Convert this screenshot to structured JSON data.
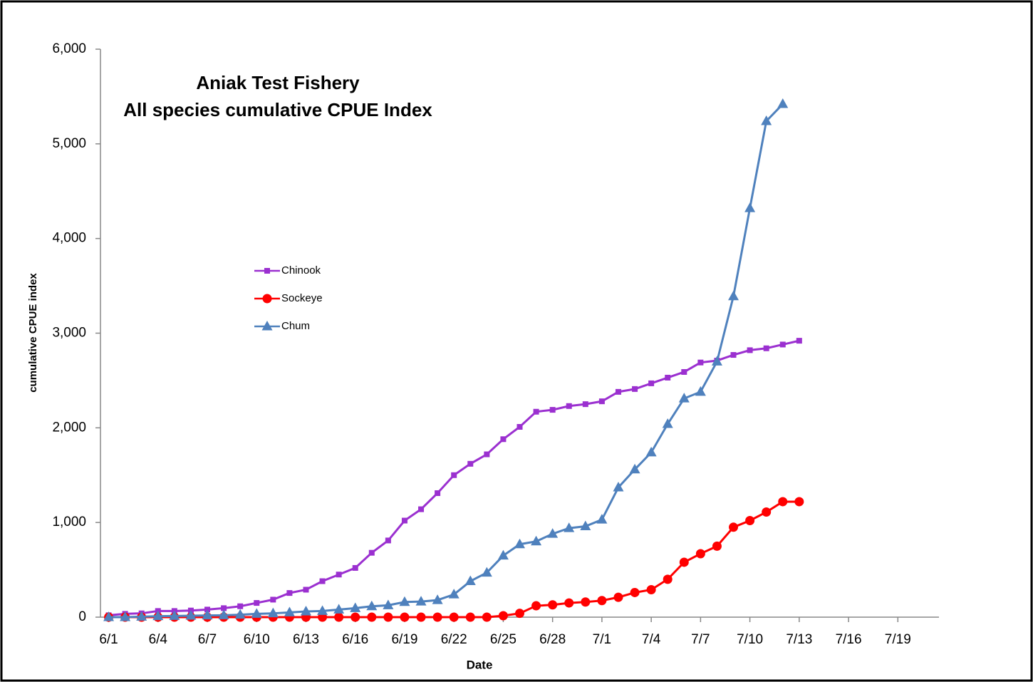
{
  "chart_data": {
    "type": "line",
    "title": [
      "Aniak Test Fishery",
      "All species cumulative CPUE Index"
    ],
    "x_label": "Date",
    "y_label": "cumulative CPUE index",
    "categories": [
      "6/1",
      null,
      null,
      "6/4",
      null,
      null,
      "6/7",
      null,
      null,
      "6/10",
      null,
      null,
      "6/13",
      null,
      null,
      "6/16",
      null,
      null,
      "6/19",
      null,
      null,
      "6/22",
      null,
      null,
      "6/25",
      null,
      null,
      "6/28",
      null,
      null,
      "7/1",
      null,
      null,
      "7/4",
      null,
      null,
      "7/7",
      null,
      null,
      "7/10",
      null,
      null,
      "7/13",
      null,
      null,
      "7/16",
      null,
      null,
      "7/19",
      null,
      null
    ],
    "series": [
      {
        "name": "Chinook",
        "color": "#9b30d0",
        "marker": "square",
        "values": [
          20,
          35,
          40,
          65,
          65,
          70,
          80,
          95,
          115,
          150,
          185,
          255,
          290,
          380,
          450,
          520,
          680,
          810,
          1020,
          1140,
          1310,
          1500,
          1620,
          1720,
          1880,
          2010,
          2170,
          2190,
          2230,
          2250,
          2280,
          2380,
          2410,
          2470,
          2530,
          2590,
          2690,
          2710,
          2770,
          2820,
          2840,
          2880,
          2920,
          null,
          null,
          null,
          null,
          null,
          null,
          null,
          null
        ]
      },
      {
        "name": "Sockeye",
        "color": "#ff0000",
        "marker": "circle",
        "values": [
          0,
          0,
          0,
          0,
          0,
          0,
          0,
          0,
          0,
          0,
          0,
          0,
          0,
          0,
          0,
          0,
          0,
          0,
          0,
          0,
          0,
          0,
          0,
          0,
          15,
          40,
          120,
          130,
          150,
          160,
          175,
          210,
          260,
          290,
          400,
          580,
          670,
          750,
          950,
          1020,
          1110,
          1220,
          1220,
          null,
          null,
          null,
          null,
          null,
          null,
          null,
          null
        ]
      },
      {
        "name": "Chum",
        "color": "#4f81bd",
        "marker": "triangle",
        "values": [
          0,
          0,
          5,
          10,
          12,
          15,
          18,
          20,
          25,
          35,
          40,
          50,
          60,
          65,
          80,
          95,
          115,
          125,
          160,
          165,
          180,
          240,
          380,
          470,
          650,
          770,
          800,
          880,
          940,
          960,
          1030,
          1370,
          1560,
          1740,
          2040,
          2310,
          2380,
          2700,
          3390,
          4320,
          5240,
          5420,
          null,
          null,
          null,
          null,
          null,
          null,
          null,
          null,
          null
        ]
      }
    ],
    "ylim": [
      0,
      6000
    ],
    "yticks": [
      0,
      {
        "value": 1000,
        "label": "1,000"
      },
      {
        "value": 2000,
        "label": "2,000"
      },
      {
        "value": 3000,
        "label": "3,000"
      },
      {
        "value": 4000,
        "label": "4,000"
      },
      {
        "value": 5000,
        "label": "5,000"
      },
      {
        "value": 6000,
        "label": "6,000"
      }
    ],
    "grid": false,
    "legend_position": "center-left"
  }
}
